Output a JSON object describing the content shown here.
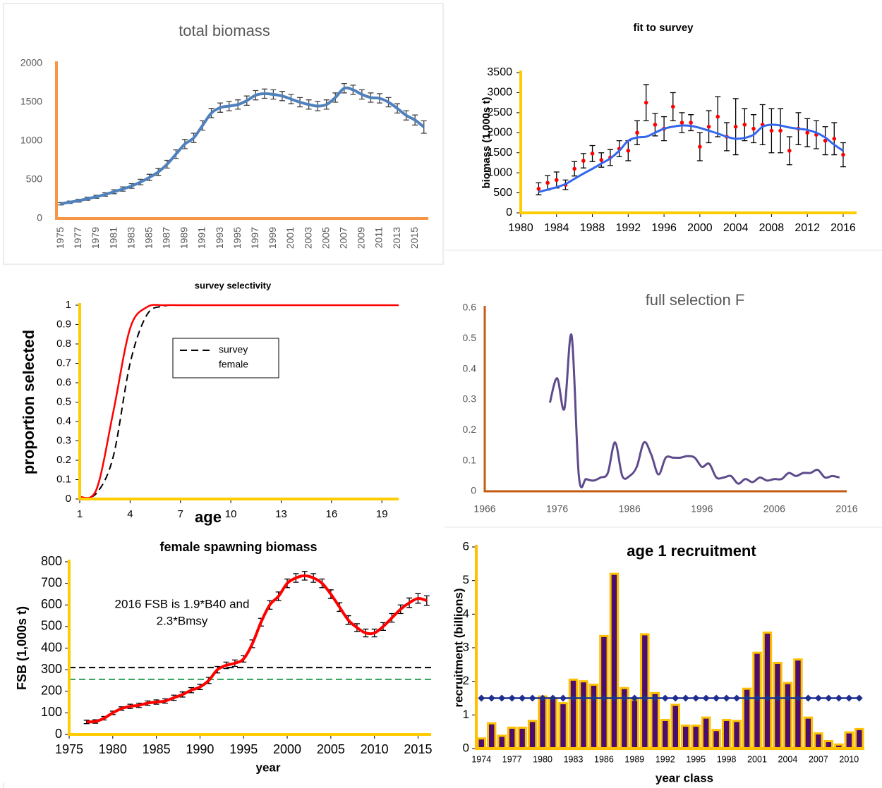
{
  "chart_data": [
    {
      "type": "line",
      "title": "total biomass",
      "categories": [
        1975,
        null,
        1977,
        null,
        1979,
        null,
        1981,
        null,
        1983,
        null,
        1985,
        null,
        1987,
        null,
        1989,
        null,
        1991,
        null,
        1993,
        null,
        1995,
        null,
        1997,
        null,
        1999,
        null,
        2001,
        null,
        2003,
        null,
        2005,
        null,
        2007,
        null,
        2009,
        null,
        2011,
        null,
        2013,
        null,
        2015,
        null
      ],
      "values": [
        190,
        210,
        230,
        255,
        280,
        310,
        345,
        380,
        420,
        470,
        530,
        600,
        700,
        830,
        960,
        1040,
        1200,
        1360,
        1430,
        1450,
        1470,
        1520,
        1590,
        1610,
        1600,
        1580,
        1540,
        1500,
        1470,
        1450,
        1470,
        1560,
        1680,
        1660,
        1600,
        1560,
        1550,
        1500,
        1420,
        1330,
        1270,
        1180
      ],
      "errors": [
        15,
        15,
        18,
        20,
        20,
        22,
        25,
        28,
        30,
        35,
        40,
        45,
        50,
        55,
        60,
        60,
        60,
        60,
        60,
        60,
        60,
        60,
        60,
        60,
        60,
        60,
        60,
        60,
        60,
        60,
        60,
        60,
        60,
        60,
        60,
        60,
        60,
        60,
        60,
        60,
        65,
        80
      ],
      "color": "#4f81bd",
      "ylim": [
        0,
        2000
      ],
      "yticks": [
        0,
        500,
        1000,
        1500,
        2000
      ]
    },
    {
      "type": "line",
      "title": "fit to survey",
      "y_label": "biomass (1,000s t)",
      "x": [
        1982,
        1983,
        1984,
        1985,
        1986,
        1987,
        1988,
        1989,
        1990,
        1991,
        1992,
        1993,
        1994,
        1995,
        1996,
        1997,
        1998,
        1999,
        2000,
        2001,
        2002,
        2003,
        2004,
        2005,
        2006,
        2007,
        2008,
        2009,
        2010,
        2011,
        2012,
        2013,
        2014,
        2015,
        2016
      ],
      "series": [
        {
          "color": "#ff0000",
          "line": false,
          "values": [
            600,
            750,
            820,
            700,
            1100,
            1300,
            1480,
            1320,
            1380,
            1600,
            1550,
            2000,
            2750,
            2200,
            2100,
            2650,
            2250,
            2250,
            1650,
            2150,
            2400,
            1900,
            2150,
            2200,
            2100,
            2200,
            2050,
            2050,
            1550,
            2100,
            2000,
            1950,
            1800,
            1850,
            1450
          ],
          "errors": [
            150,
            180,
            200,
            120,
            180,
            180,
            200,
            180,
            200,
            200,
            250,
            300,
            450,
            280,
            300,
            350,
            250,
            200,
            350,
            400,
            500,
            350,
            700,
            400,
            350,
            500,
            550,
            550,
            350,
            400,
            350,
            350,
            350,
            400,
            300
          ]
        },
        {
          "color": "#3366ee",
          "line": true,
          "values": [
            520,
            580,
            640,
            720,
            850,
            980,
            1100,
            1230,
            1360,
            1550,
            1800,
            1880,
            1900,
            2000,
            2100,
            2150,
            2180,
            2170,
            2120,
            2050,
            1980,
            1900,
            1850,
            1870,
            1950,
            2150,
            2200,
            2180,
            2130,
            2100,
            2070,
            2000,
            1880,
            1700,
            1550
          ]
        }
      ],
      "xlim": [
        1980,
        2017.5
      ],
      "xticks": [
        1980,
        1984,
        1988,
        1992,
        1996,
        2000,
        2004,
        2008,
        2012,
        2016
      ],
      "ylim": [
        0,
        3500
      ],
      "yticks": [
        0,
        500,
        1000,
        1500,
        2000,
        2500,
        3000,
        3500
      ]
    },
    {
      "type": "line",
      "title": "survey selectivity",
      "x_label": "age",
      "y_label": "proportion selected",
      "x": [
        1,
        2,
        3,
        4,
        5,
        6,
        7,
        8,
        9,
        10,
        11,
        12,
        13,
        14,
        15,
        16,
        17,
        18,
        19,
        20
      ],
      "series": [
        {
          "name": "survey",
          "color": "#000000",
          "dash": true,
          "values": [
            0.005,
            0.03,
            0.22,
            0.7,
            0.95,
            0.995,
            1,
            1,
            1,
            1,
            1,
            1,
            1,
            1,
            1,
            1,
            1,
            1,
            1,
            1
          ]
        },
        {
          "name": "female",
          "color": "#ff0000",
          "values": [
            0.01,
            0.05,
            0.45,
            0.88,
            0.99,
            1,
            1,
            1,
            1,
            1,
            1,
            1,
            1,
            1,
            1,
            1,
            1,
            1,
            1,
            1
          ]
        }
      ],
      "xlim": [
        1,
        20
      ],
      "xticks": [
        1,
        4,
        7,
        10,
        13,
        16,
        19
      ],
      "ylim": [
        0,
        1
      ],
      "yticks": [
        0,
        0.1,
        0.2,
        0.3,
        0.4,
        0.5,
        0.6,
        0.7,
        0.8,
        0.9,
        1
      ]
    },
    {
      "type": "line",
      "title": "full selection F",
      "x": [
        1975,
        1976,
        1977,
        1978,
        1979,
        1980,
        1981,
        1982,
        1983,
        1984,
        1985,
        1986,
        1987,
        1988,
        1989,
        1990,
        1991,
        1992,
        1993,
        1994,
        1995,
        1996,
        1997,
        1998,
        1999,
        2000,
        2001,
        2002,
        2003,
        2004,
        2005,
        2006,
        2007,
        2008,
        2009,
        2010,
        2011,
        2012,
        2013,
        2014,
        2015
      ],
      "values": [
        0.29,
        0.37,
        0.27,
        0.51,
        0.05,
        0.04,
        0.035,
        0.045,
        0.06,
        0.16,
        0.05,
        0.05,
        0.08,
        0.16,
        0.12,
        0.055,
        0.11,
        0.11,
        0.11,
        0.115,
        0.11,
        0.08,
        0.09,
        0.045,
        0.045,
        0.05,
        0.025,
        0.04,
        0.03,
        0.045,
        0.035,
        0.04,
        0.04,
        0.06,
        0.05,
        0.06,
        0.06,
        0.07,
        0.045,
        0.05,
        0.045
      ],
      "color": "#5f4b8b",
      "xlim": [
        1966,
        2016
      ],
      "xticks": [
        1966,
        1976,
        1986,
        1996,
        2006,
        2016
      ],
      "ylim": [
        0,
        0.6
      ],
      "yticks": [
        0,
        0.1,
        0.2,
        0.3,
        0.4,
        0.5,
        0.6
      ]
    },
    {
      "type": "line",
      "title": "female spawning biomass",
      "x_label": "year",
      "y_label": "FSB (1,000s t)",
      "annotation": [
        "2016 FSB is 1.9*B40 and",
        "2.3*Bmsy"
      ],
      "x": [
        1977,
        1978,
        1979,
        1980,
        1981,
        1982,
        1983,
        1984,
        1985,
        1986,
        1987,
        1988,
        1989,
        1990,
        1991,
        1992,
        1993,
        1994,
        1995,
        1996,
        1997,
        1998,
        1999,
        2000,
        2001,
        2002,
        2003,
        2004,
        2005,
        2006,
        2007,
        2008,
        2009,
        2010,
        2011,
        2012,
        2013,
        2014,
        2015,
        2016
      ],
      "values": [
        58,
        60,
        75,
        100,
        120,
        130,
        135,
        145,
        150,
        155,
        170,
        185,
        205,
        220,
        250,
        300,
        320,
        330,
        350,
        420,
        520,
        600,
        640,
        700,
        725,
        735,
        725,
        700,
        650,
        590,
        530,
        495,
        470,
        470,
        500,
        540,
        580,
        610,
        630,
        620
      ],
      "errors": [
        8,
        8,
        8,
        8,
        8,
        10,
        10,
        10,
        10,
        10,
        12,
        12,
        12,
        12,
        14,
        15,
        15,
        15,
        15,
        18,
        18,
        20,
        20,
        20,
        20,
        20,
        20,
        20,
        20,
        20,
        20,
        18,
        18,
        18,
        18,
        20,
        20,
        22,
        22,
        22
      ],
      "color": "#ff0000",
      "hlines": [
        {
          "value": 310,
          "color": "#000000"
        },
        {
          "value": 255,
          "color": "#2e9e57"
        }
      ],
      "xlim": [
        1975,
        2016.5
      ],
      "xticks": [
        1975,
        1980,
        1985,
        1990,
        1995,
        2000,
        2005,
        2010,
        2015
      ],
      "ylim": [
        0,
        800
      ],
      "yticks": [
        0,
        100,
        200,
        300,
        400,
        500,
        600,
        700,
        800
      ]
    },
    {
      "type": "bar",
      "title": "age 1 recruitment",
      "x_label": "year class",
      "y_label": "recruitment (billions)",
      "categories": [
        1974,
        null,
        null,
        1977,
        null,
        null,
        1980,
        null,
        null,
        1983,
        null,
        null,
        1986,
        null,
        null,
        1989,
        null,
        null,
        1992,
        null,
        null,
        1995,
        null,
        null,
        1998,
        null,
        null,
        2001,
        null,
        null,
        2004,
        null,
        null,
        2007,
        null,
        null,
        2010,
        null
      ],
      "values": [
        0.3,
        0.75,
        0.38,
        0.62,
        0.62,
        0.82,
        1.55,
        1.5,
        1.35,
        2.05,
        2.0,
        1.9,
        3.35,
        5.2,
        1.8,
        1.45,
        3.4,
        1.65,
        0.85,
        1.3,
        0.68,
        0.68,
        0.92,
        0.55,
        0.85,
        0.82,
        1.78,
        2.85,
        3.45,
        2.55,
        1.95,
        2.65,
        0.92,
        0.45,
        0.22,
        0.12,
        0.48,
        0.58
      ],
      "color": "#4b0d6e",
      "edge_color": "#ffc000",
      "mean": 1.5,
      "mean_color": "#1f2f8f",
      "ylim": [
        0,
        6
      ],
      "yticks": [
        0,
        1,
        2,
        3,
        4,
        5,
        6
      ]
    }
  ]
}
